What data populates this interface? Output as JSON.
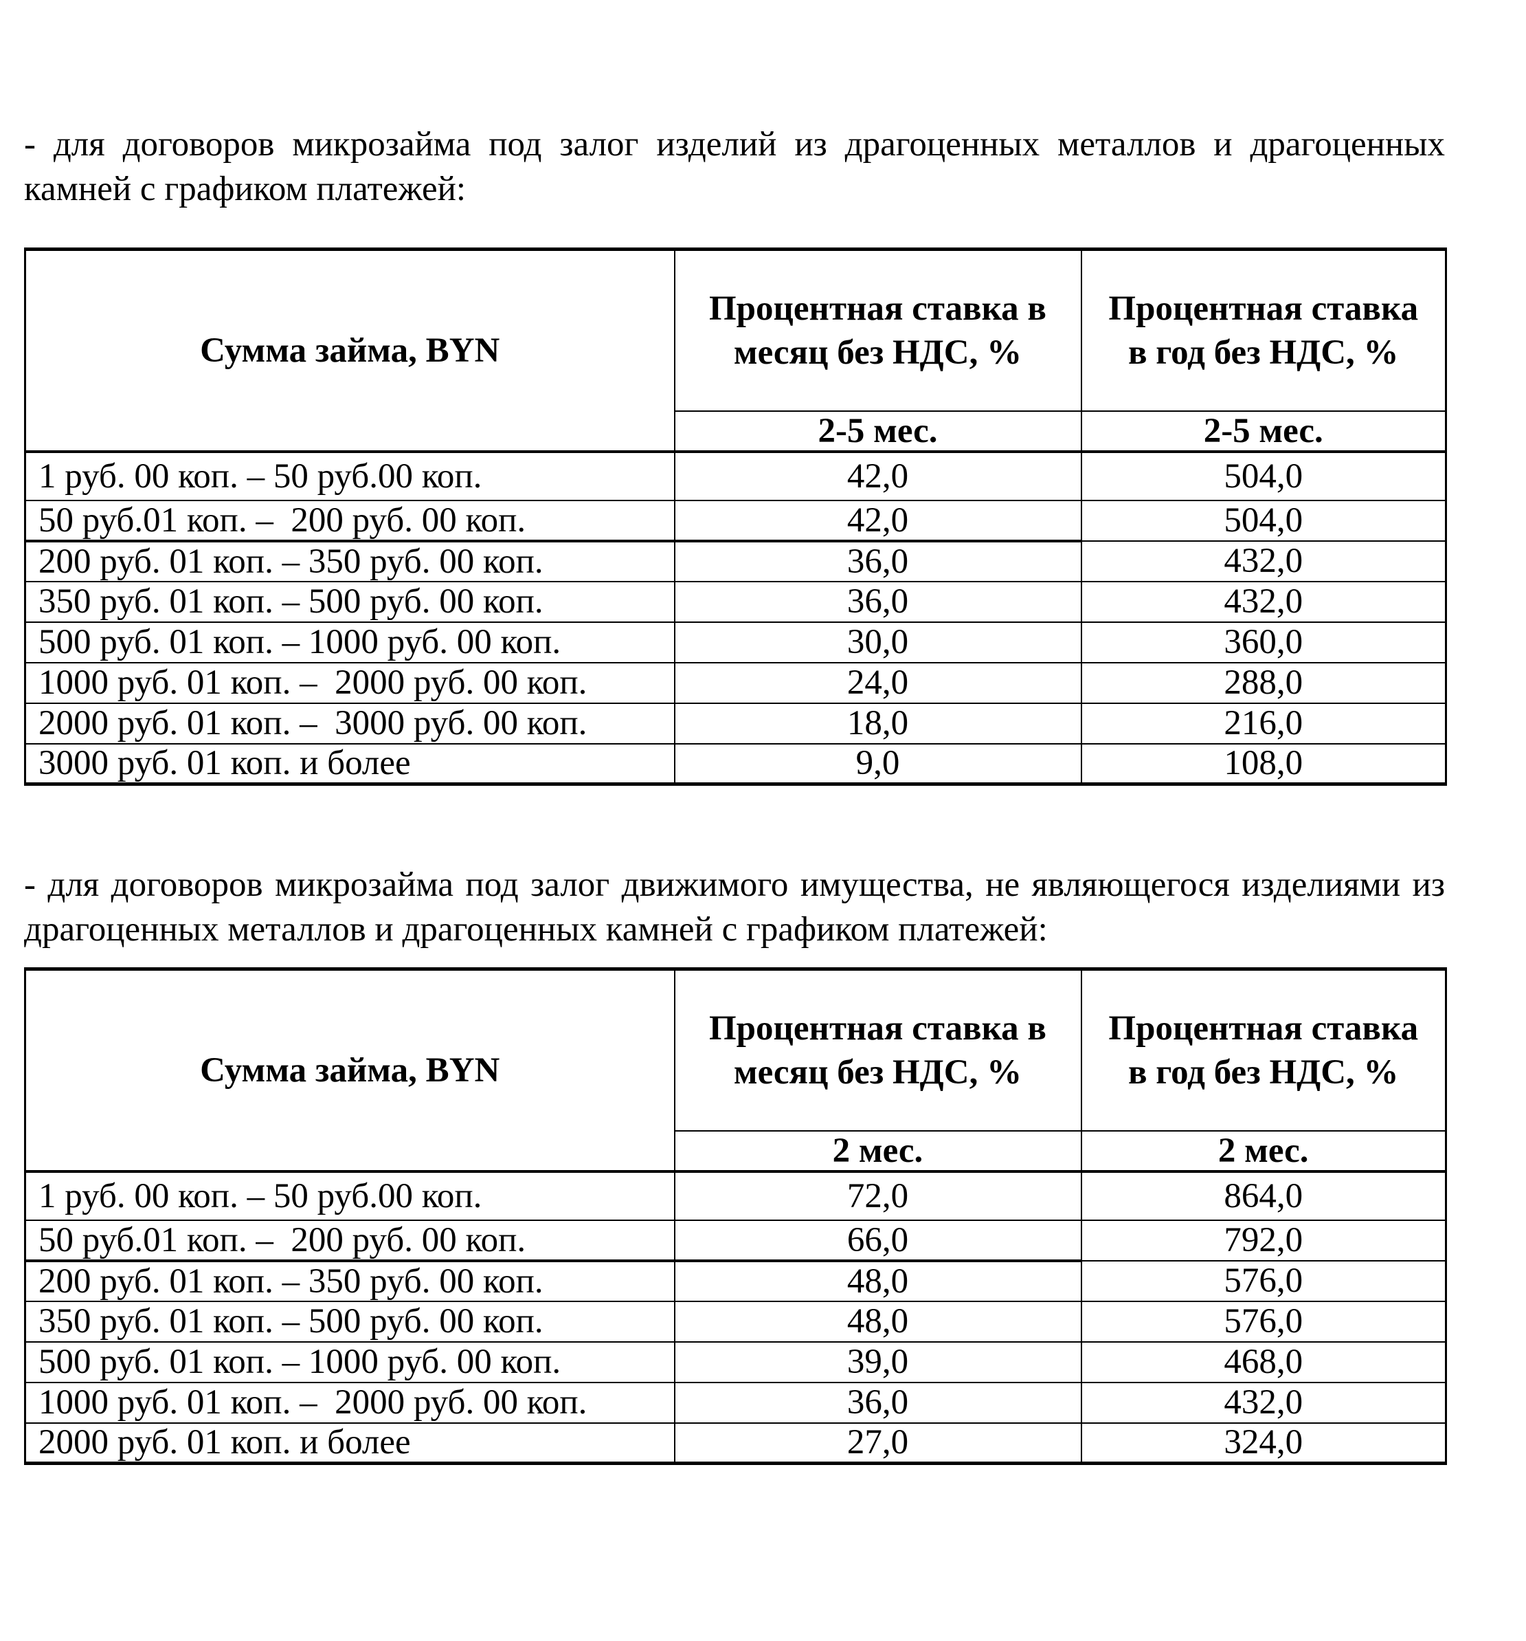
{
  "section1": {
    "intro": "- для договоров микрозайма под залог изделий из драгоценных металлов и драгоценных камней с графиком платежей:",
    "table": {
      "col_amount": "Сумма займа, BYN",
      "col_month": "Процентная ставка в месяц без НДС, %",
      "col_year": "Процентная ставка в год без НДС, %",
      "sub_month": "2-5 мес.",
      "sub_year": "2-5 мес.",
      "rows": [
        {
          "amount": "1 руб. 00 коп. – 50 руб.00 коп.",
          "month": "42,0",
          "year": "504,0"
        },
        {
          "amount": "50 руб.01 коп. –  200 руб. 00 коп.",
          "month": "42,0",
          "year": "504,0"
        },
        {
          "amount": "200 руб. 01 коп. – 350 руб. 00 коп.",
          "month": "36,0",
          "year": "432,0"
        },
        {
          "amount": "350 руб. 01 коп. – 500 руб. 00 коп.",
          "month": "36,0",
          "year": "432,0"
        },
        {
          "amount": "500 руб. 01 коп. – 1000 руб. 00 коп.",
          "month": "30,0",
          "year": "360,0"
        },
        {
          "amount": "1000 руб. 01 коп. –  2000 руб. 00 коп.",
          "month": "24,0",
          "year": "288,0"
        },
        {
          "amount": "2000 руб. 01 коп. –  3000 руб. 00 коп.",
          "month": "18,0",
          "year": "216,0"
        },
        {
          "amount": "3000 руб. 01 коп. и более",
          "month": "9,0",
          "year": "108,0"
        }
      ]
    }
  },
  "section2": {
    "intro": "- для договоров микрозайма под залог движимого имущества, не являющегося изделиями из драгоценных металлов и драгоценных камней с графиком платежей:",
    "table": {
      "col_amount": "Сумма займа, BYN",
      "col_month": "Процентная ставка в месяц без НДС, %",
      "col_year": "Процентная ставка в год без НДС, %",
      "sub_month": "2 мес.",
      "sub_year": "2 мес.",
      "rows": [
        {
          "amount": "1 руб. 00 коп. – 50 руб.00 коп.",
          "month": "72,0",
          "year": "864,0"
        },
        {
          "amount": "50 руб.01 коп. –  200 руб. 00 коп.",
          "month": "66,0",
          "year": "792,0"
        },
        {
          "amount": "200 руб. 01 коп. – 350 руб. 00 коп.",
          "month": "48,0",
          "year": "576,0"
        },
        {
          "amount": "350 руб. 01 коп. – 500 руб. 00 коп.",
          "month": "48,0",
          "year": "576,0"
        },
        {
          "amount": "500 руб. 01 коп. – 1000 руб. 00 коп.",
          "month": "39,0",
          "year": "468,0"
        },
        {
          "amount": "1000 руб. 01 коп. –  2000 руб. 00 коп.",
          "month": "36,0",
          "year": "432,0"
        },
        {
          "amount": "2000 руб. 01 коп. и более",
          "month": "27,0",
          "year": "324,0"
        }
      ]
    }
  }
}
